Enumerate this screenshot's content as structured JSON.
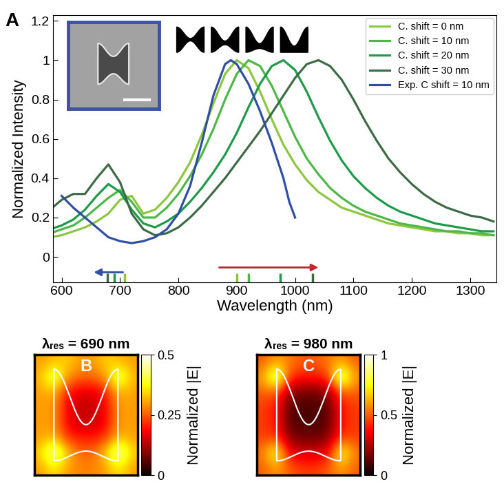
{
  "chart_data": [
    {
      "type": "line",
      "panel_label": "A",
      "x_label": "Wavelength (nm)",
      "y_label": "Normalized Intensity",
      "xlim": [
        585,
        1345
      ],
      "ylim": [
        -0.13,
        1.23
      ],
      "xticks": [
        600,
        700,
        800,
        900,
        1000,
        1100,
        1200,
        1300
      ],
      "yticks": [
        0,
        0.2,
        0.4,
        0.6,
        0.8,
        1,
        1.2
      ],
      "legend": "upper right",
      "series": [
        {
          "name": "C. shift = 0 nm",
          "color": "#8dc63f",
          "x": [
            580,
            600,
            620,
            640,
            660,
            680,
            700,
            720,
            740,
            760,
            780,
            800,
            820,
            840,
            860,
            880,
            900,
            920,
            940,
            960,
            980,
            1000,
            1020,
            1040,
            1060,
            1080,
            1100,
            1120,
            1140,
            1160,
            1180,
            1200,
            1220,
            1240,
            1260,
            1280,
            1300,
            1320,
            1340
          ],
          "values": [
            0.1,
            0.11,
            0.13,
            0.15,
            0.18,
            0.22,
            0.29,
            0.31,
            0.22,
            0.24,
            0.3,
            0.38,
            0.48,
            0.62,
            0.78,
            0.93,
            1.0,
            0.96,
            0.84,
            0.7,
            0.57,
            0.47,
            0.39,
            0.33,
            0.29,
            0.25,
            0.23,
            0.21,
            0.19,
            0.17,
            0.16,
            0.15,
            0.14,
            0.13,
            0.13,
            0.12,
            0.12,
            0.11,
            0.11
          ]
        },
        {
          "name": "C. shift = 10 nm",
          "color": "#4db848",
          "x": [
            580,
            600,
            620,
            640,
            660,
            680,
            700,
            720,
            740,
            760,
            780,
            800,
            820,
            840,
            860,
            880,
            900,
            920,
            940,
            960,
            980,
            1000,
            1020,
            1040,
            1060,
            1080,
            1100,
            1120,
            1140,
            1160,
            1180,
            1200,
            1220,
            1240,
            1260,
            1280,
            1300,
            1320,
            1340
          ],
          "values": [
            0.12,
            0.14,
            0.16,
            0.2,
            0.25,
            0.3,
            0.34,
            0.28,
            0.2,
            0.2,
            0.25,
            0.32,
            0.41,
            0.52,
            0.65,
            0.8,
            0.93,
            1.0,
            0.97,
            0.87,
            0.74,
            0.61,
            0.5,
            0.42,
            0.35,
            0.3,
            0.26,
            0.23,
            0.21,
            0.19,
            0.17,
            0.16,
            0.15,
            0.14,
            0.13,
            0.13,
            0.12,
            0.12,
            0.11
          ]
        },
        {
          "name": "C. shift = 20 nm",
          "color": "#1e9a4a",
          "x": [
            580,
            600,
            620,
            640,
            660,
            680,
            700,
            720,
            740,
            760,
            780,
            800,
            820,
            840,
            860,
            880,
            900,
            920,
            940,
            960,
            980,
            1000,
            1020,
            1040,
            1060,
            1080,
            1100,
            1120,
            1140,
            1160,
            1180,
            1200,
            1220,
            1240,
            1260,
            1280,
            1300,
            1320,
            1340
          ],
          "values": [
            0.14,
            0.16,
            0.19,
            0.24,
            0.31,
            0.37,
            0.33,
            0.24,
            0.17,
            0.15,
            0.18,
            0.22,
            0.28,
            0.35,
            0.43,
            0.52,
            0.63,
            0.76,
            0.88,
            0.97,
            1.0,
            0.95,
            0.84,
            0.71,
            0.59,
            0.49,
            0.41,
            0.35,
            0.3,
            0.26,
            0.23,
            0.21,
            0.19,
            0.17,
            0.16,
            0.15,
            0.14,
            0.13,
            0.13
          ]
        },
        {
          "name": "C. shift = 30 nm",
          "color": "#3d6b45",
          "x": [
            580,
            600,
            620,
            640,
            660,
            680,
            700,
            720,
            740,
            760,
            780,
            800,
            820,
            840,
            860,
            880,
            900,
            920,
            940,
            960,
            980,
            1000,
            1020,
            1040,
            1060,
            1080,
            1100,
            1120,
            1140,
            1160,
            1180,
            1200,
            1220,
            1240,
            1260,
            1280,
            1300,
            1320,
            1340
          ],
          "values": [
            0.24,
            0.29,
            0.32,
            0.32,
            0.4,
            0.47,
            0.38,
            0.22,
            0.14,
            0.11,
            0.12,
            0.15,
            0.2,
            0.26,
            0.33,
            0.4,
            0.48,
            0.56,
            0.64,
            0.73,
            0.82,
            0.91,
            0.98,
            1.0,
            0.97,
            0.9,
            0.8,
            0.69,
            0.59,
            0.5,
            0.43,
            0.37,
            0.32,
            0.28,
            0.25,
            0.23,
            0.21,
            0.2,
            0.18
          ]
        },
        {
          "name": "Exp. C shift = 10 nm",
          "color": "#2e4fa3",
          "x": [
            600,
            620,
            640,
            660,
            680,
            700,
            720,
            740,
            760,
            780,
            800,
            820,
            840,
            860,
            880,
            890,
            900,
            920,
            940,
            960,
            980,
            990,
            1000
          ],
          "values": [
            0.31,
            0.25,
            0.2,
            0.15,
            0.1,
            0.08,
            0.07,
            0.08,
            0.1,
            0.14,
            0.22,
            0.36,
            0.58,
            0.82,
            0.98,
            1.0,
            0.98,
            0.88,
            0.74,
            0.58,
            0.4,
            0.28,
            0.2
          ]
        }
      ],
      "resonance_marks": [
        {
          "x": 678,
          "color": "#3d6b45"
        },
        {
          "x": 690,
          "color": "#1e9a4a"
        },
        {
          "x": 708,
          "color": "#8dc63f"
        },
        {
          "x": 900,
          "color": "#8dc63f"
        },
        {
          "x": 920,
          "color": "#4db848"
        },
        {
          "x": 975,
          "color": "#1e9a4a"
        },
        {
          "x": 1030,
          "color": "#3d6b45"
        }
      ],
      "arrows": [
        {
          "from": 705,
          "to": 655,
          "color": "#2e4fa3"
        },
        {
          "from": 870,
          "to": 1040,
          "color": "#c1272d"
        }
      ]
    },
    {
      "type": "heatmap",
      "panel_label": "B",
      "title": {
        "base": "λ",
        "sub": "res",
        "rest": " = 690 nm"
      },
      "cells": [
        [
          0.3,
          0.32,
          0.34,
          0.3,
          0.3,
          0.34,
          0.32,
          0.3
        ],
        [
          0.32,
          0.45,
          0.3,
          0.26,
          0.26,
          0.3,
          0.45,
          0.32
        ],
        [
          0.3,
          0.32,
          0.2,
          0.16,
          0.16,
          0.2,
          0.32,
          0.3
        ],
        [
          0.3,
          0.3,
          0.18,
          0.14,
          0.14,
          0.18,
          0.3,
          0.3
        ],
        [
          0.3,
          0.3,
          0.18,
          0.14,
          0.14,
          0.18,
          0.3,
          0.3
        ],
        [
          0.3,
          0.32,
          0.22,
          0.2,
          0.2,
          0.22,
          0.32,
          0.3
        ],
        [
          0.34,
          0.5,
          0.34,
          0.26,
          0.26,
          0.34,
          0.5,
          0.34
        ],
        [
          0.3,
          0.36,
          0.3,
          0.28,
          0.28,
          0.3,
          0.36,
          0.3
        ]
      ],
      "colorbar_label": "Normalized |E|",
      "colorbar_range": [
        0,
        0.5
      ],
      "colorbar_ticks": [
        0,
        0.25,
        0.5
      ]
    },
    {
      "type": "heatmap",
      "panel_label": "C",
      "title": {
        "base": "λ",
        "sub": "res",
        "rest": " = 980 nm"
      },
      "cells": [
        [
          0.5,
          0.6,
          0.55,
          0.5,
          0.5,
          0.55,
          0.6,
          0.5
        ],
        [
          0.6,
          1.0,
          0.45,
          0.4,
          0.4,
          0.45,
          1.0,
          0.6
        ],
        [
          0.5,
          0.5,
          0.2,
          0.15,
          0.15,
          0.2,
          0.5,
          0.5
        ],
        [
          0.45,
          0.4,
          0.12,
          0.1,
          0.1,
          0.12,
          0.4,
          0.45
        ],
        [
          0.45,
          0.4,
          0.12,
          0.1,
          0.1,
          0.12,
          0.4,
          0.45
        ],
        [
          0.45,
          0.45,
          0.18,
          0.15,
          0.15,
          0.18,
          0.45,
          0.45
        ],
        [
          0.55,
          0.85,
          0.35,
          0.3,
          0.3,
          0.35,
          0.85,
          0.55
        ],
        [
          0.5,
          0.6,
          0.5,
          0.45,
          0.45,
          0.5,
          0.6,
          0.5
        ]
      ],
      "colorbar_label": "Normalized |E|",
      "colorbar_range": [
        0,
        1
      ],
      "colorbar_ticks": [
        0,
        0.5,
        1
      ]
    }
  ]
}
